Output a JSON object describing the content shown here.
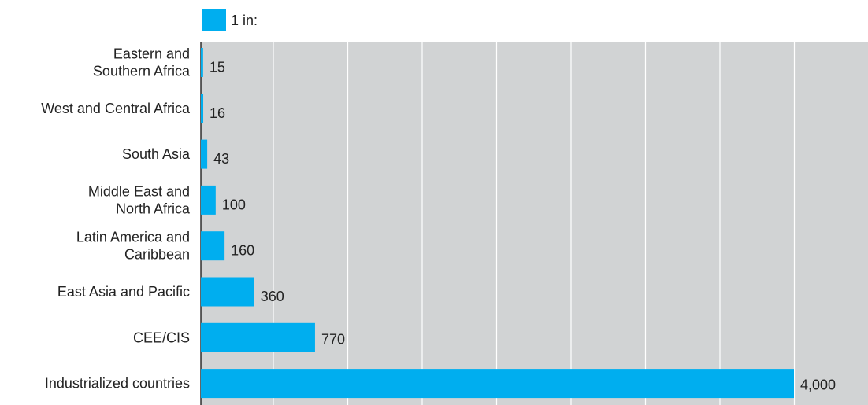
{
  "legend": {
    "label": "1 in:"
  },
  "colors": {
    "bar": "#00AEEF",
    "plot_bg": "#D1D3D4",
    "grid": "#FFFFFF",
    "axis": "#000000",
    "text": "#222222"
  },
  "chart_data": {
    "type": "bar",
    "orientation": "horizontal",
    "categories": [
      [
        "Eastern and",
        "Southern Africa"
      ],
      [
        "West and Central Africa"
      ],
      [
        "South Asia"
      ],
      [
        "Middle East and",
        "North Africa"
      ],
      [
        "Latin America and",
        "Caribbean"
      ],
      [
        "East Asia and Pacific"
      ],
      [
        "CEE/CIS"
      ],
      [
        "Industrialized countries"
      ]
    ],
    "series": [
      {
        "name": "1 in:",
        "values": [
          15,
          16,
          43,
          100,
          160,
          360,
          770,
          4000
        ],
        "labels": [
          "15",
          "16",
          "43",
          "100",
          "160",
          "360",
          "770",
          "4,000"
        ]
      }
    ],
    "xlim": [
      0,
      4400
    ],
    "grid": true,
    "legend_position": "top-left"
  }
}
